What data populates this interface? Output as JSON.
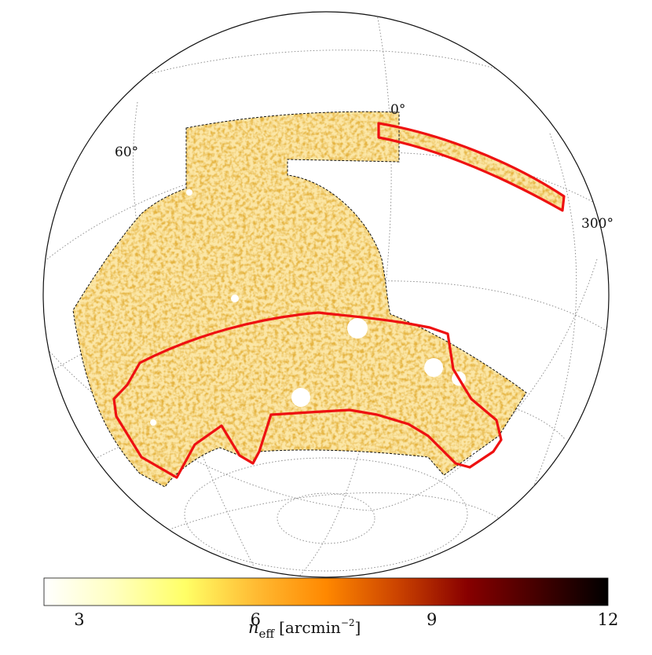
{
  "map": {
    "projection": "orthographic",
    "graticule_labels": {
      "dec_zero": "0°",
      "dec_sixty": "60°",
      "ra_300": "300°"
    },
    "region_outline_color": "#ee1111",
    "footprint_outline": "dashed-black"
  },
  "colorbar": {
    "colormap": "afmhot_r",
    "min": 2.4,
    "max": 12,
    "ticks": [
      "3",
      "6",
      "9",
      "12"
    ],
    "tick_values": [
      3,
      6,
      9,
      12
    ],
    "label_symbol": "n",
    "label_subscript": "eff",
    "label_units": "[arcmin",
    "label_exponent": "−2",
    "label_close": "]",
    "stops": [
      "#ffffff",
      "#ffffc0",
      "#ffff66",
      "#ffbb33",
      "#ff8800",
      "#cc4400",
      "#880000",
      "#440000",
      "#000000"
    ]
  }
}
